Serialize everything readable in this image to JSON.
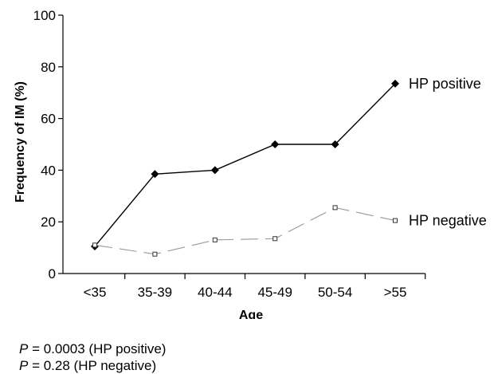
{
  "chart_data": {
    "type": "line",
    "categories": [
      "<35",
      "35-39",
      "40-44",
      "45-49",
      "50-54",
      ">55"
    ],
    "series": [
      {
        "name": "HP positive",
        "values": [
          10.5,
          38.5,
          40,
          50,
          50,
          73.5
        ],
        "color": "#000000",
        "marker": "filled-diamond",
        "line": "solid"
      },
      {
        "name": "HP negative",
        "values": [
          11,
          7.5,
          13,
          13.5,
          25.5,
          20.5
        ],
        "color": "#999999",
        "marker": "open-square",
        "line": "dashed"
      }
    ],
    "xlabel": "Age",
    "ylabel": "Frequency of IM (%)",
    "ylim": [
      0,
      100
    ],
    "yticks": [
      "0",
      "20",
      "40",
      "60",
      "80",
      "100"
    ],
    "grid": false,
    "legend": "inline-right"
  },
  "footnotes": [
    {
      "var": "P",
      "text": " = 0.0003 (HP positive)"
    },
    {
      "var": "P",
      "text": " = 0.28 (HP negative)"
    }
  ]
}
